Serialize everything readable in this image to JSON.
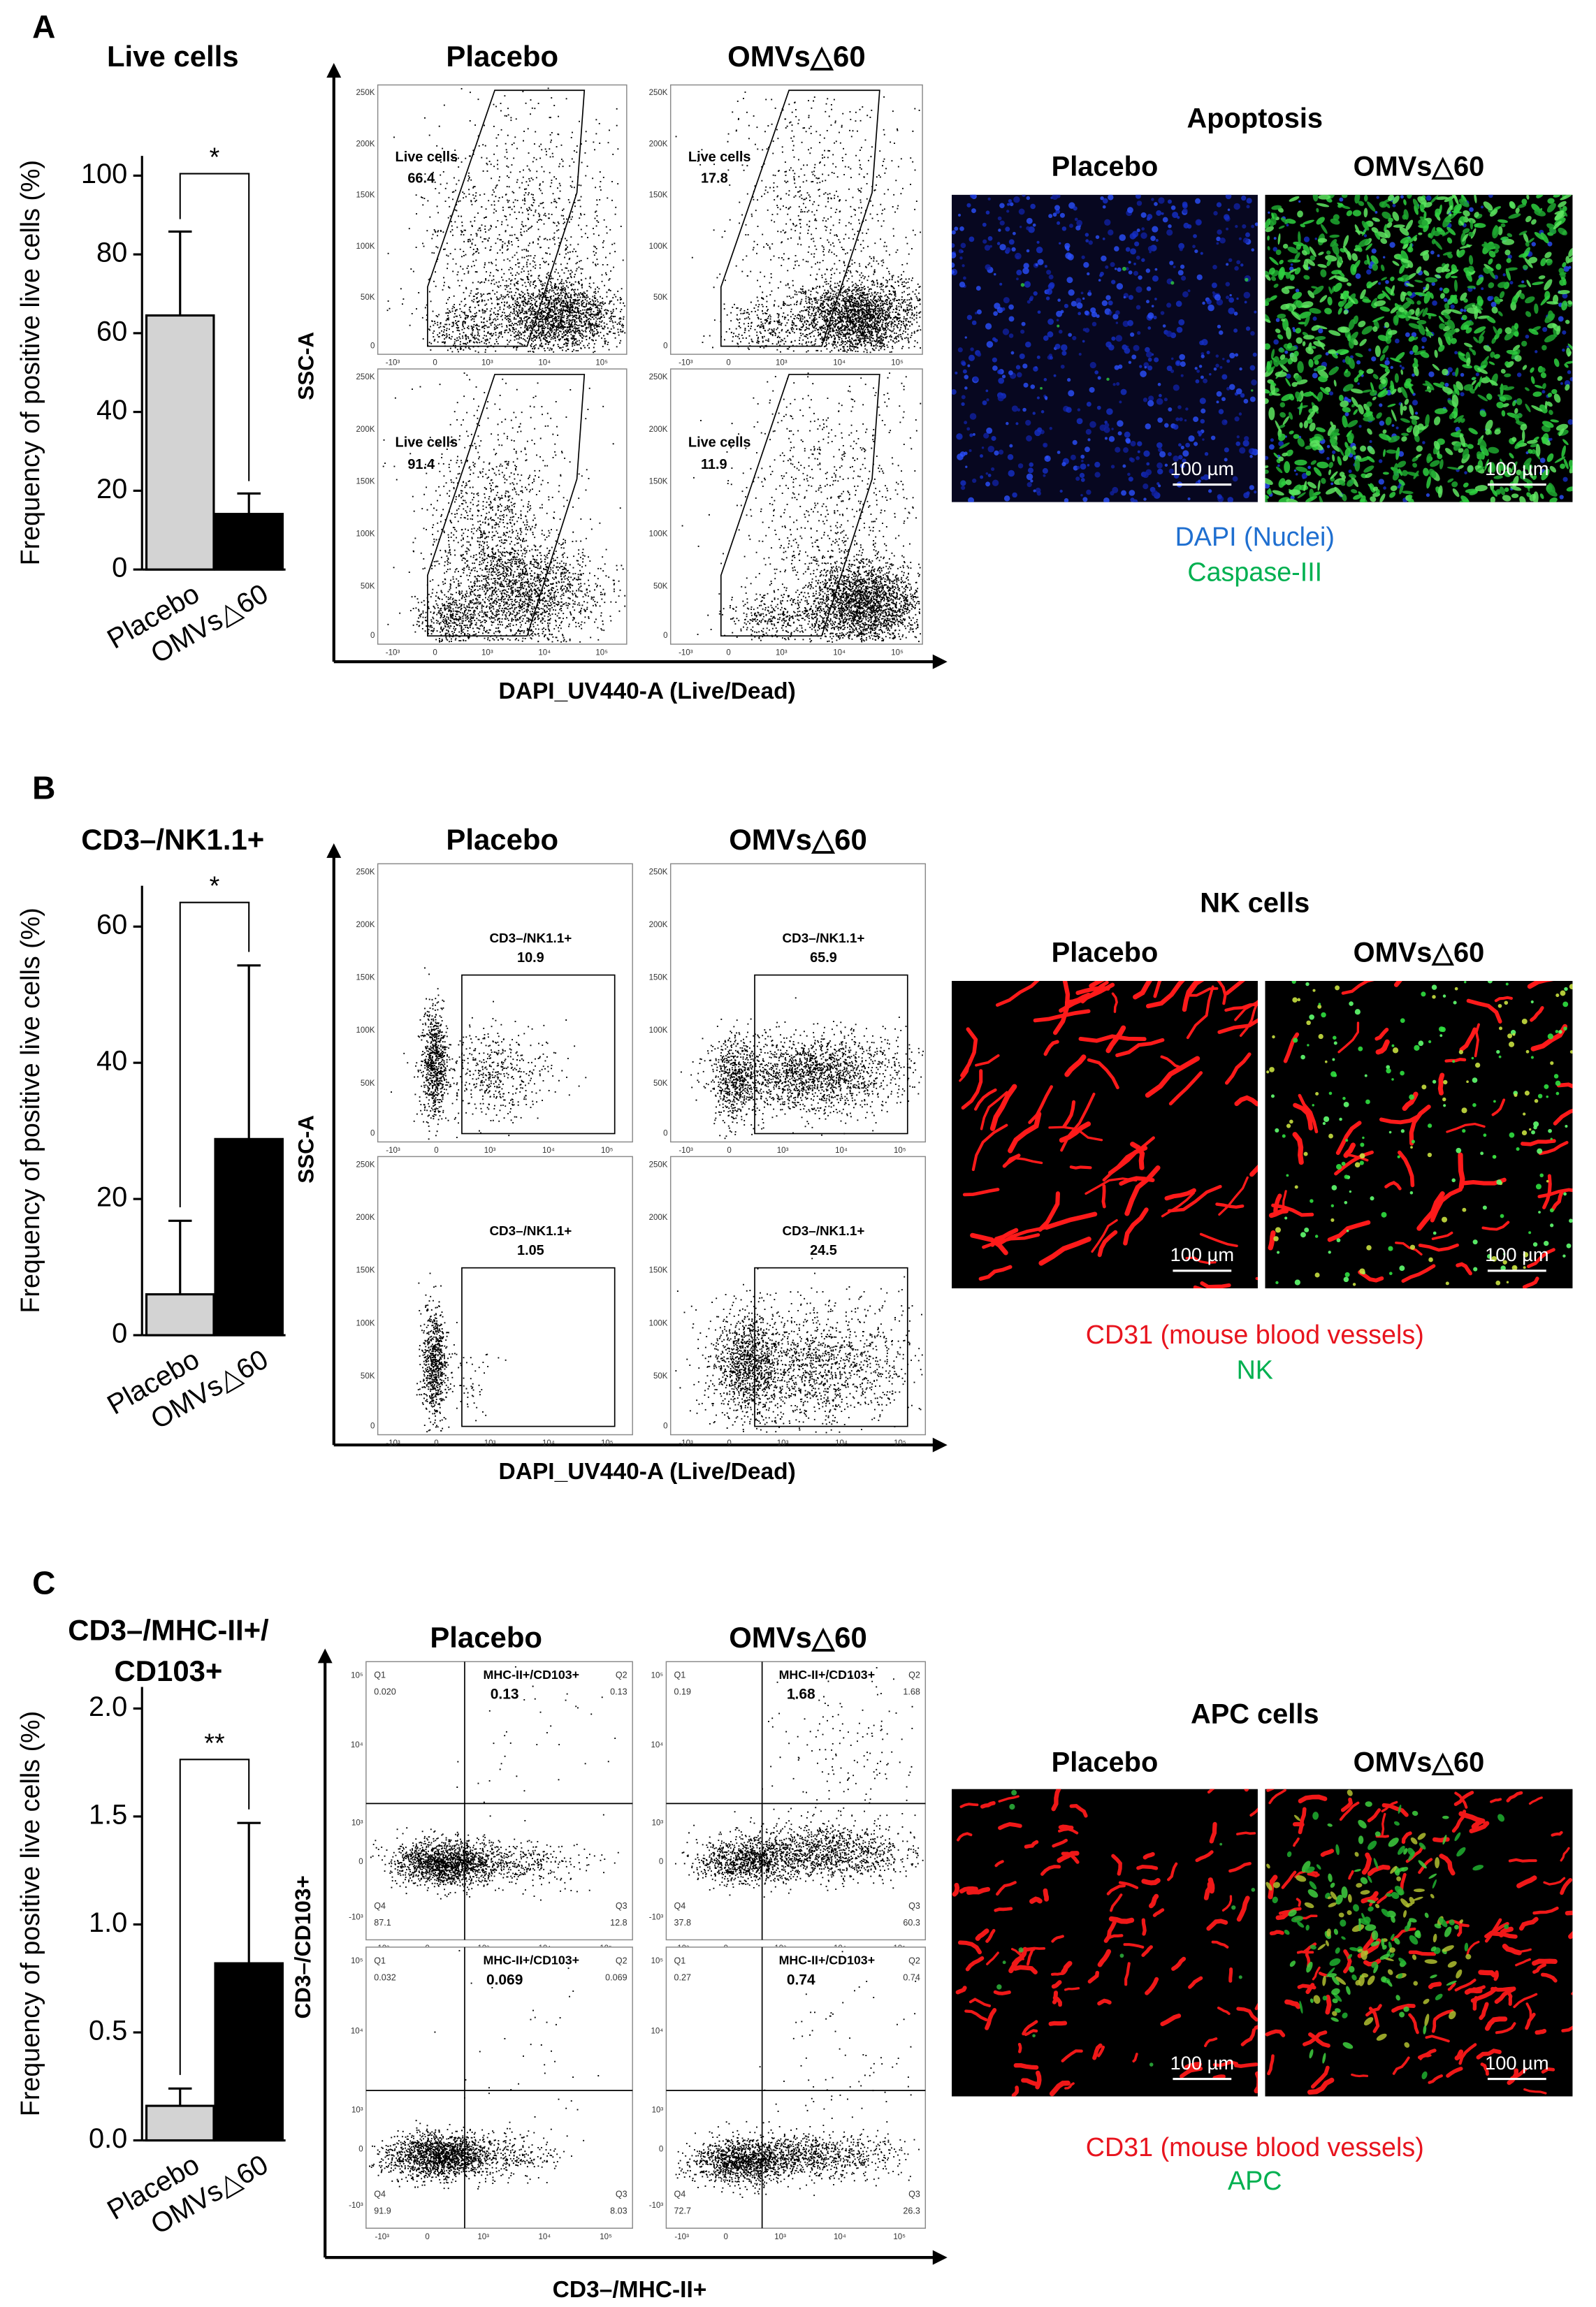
{
  "chart_data": [
    {
      "type": "bar",
      "title": "Live cells",
      "y_label": "Frequency of positive live cells (%)",
      "categories": [
        "Placebo",
        "OMVs△60"
      ],
      "values": [
        64.5,
        14.1
      ],
      "errors": [
        21.3,
        5.2
      ],
      "colors": [
        "#d3d3d3",
        "#000000"
      ],
      "ylim": [
        0,
        105
      ],
      "yticks": [
        0,
        20,
        40,
        60,
        80,
        100
      ],
      "significance": "*"
    },
    {
      "type": "bar",
      "title": "CD3–/NK1.1+",
      "y_label": "Frequency of positive live cells (%)",
      "categories": [
        "Placebo",
        "OMVs△60"
      ],
      "values": [
        6.0,
        28.8
      ],
      "errors": [
        10.8,
        25.5
      ],
      "colors": [
        "#d3d3d3",
        "#000000"
      ],
      "ylim": [
        0,
        66
      ],
      "yticks": [
        0,
        20,
        40,
        60
      ],
      "significance": "*"
    },
    {
      "type": "bar",
      "title": [
        "CD3–/MHC-II+/",
        "CD103+"
      ],
      "y_label": "Frequency of positive live cells (%)",
      "categories": [
        "Placebo",
        "OMVs△60"
      ],
      "values": [
        0.16,
        0.82
      ],
      "errors": [
        0.08,
        0.65
      ],
      "colors": [
        "#d3d3d3",
        "#000000"
      ],
      "ylim": [
        0,
        2.1
      ],
      "yticks": [
        {
          "value": 0,
          "label": "0.0"
        },
        {
          "value": 0.5,
          "label": "0.5"
        },
        {
          "value": 1,
          "label": "1.0"
        },
        {
          "value": 1.5,
          "label": "1.5"
        },
        {
          "value": 2,
          "label": "2.0"
        }
      ],
      "significance": "**"
    }
  ],
  "panels": [
    {
      "letter": "A",
      "flow": {
        "headers": [
          "Placebo",
          "OMVs△60"
        ],
        "y_label": "SSC-A",
        "x_label": "DAPI_UV440-A (Live/Dead)",
        "gate_label": "Live cells",
        "gate_values": [
          "66.4",
          "17.8",
          "91.4",
          "11.9"
        ],
        "yticks": [
          "250K",
          "200K",
          "150K",
          "100K",
          "50K",
          "0"
        ],
        "xticks": [
          "-10³",
          "0",
          "10³",
          "10⁴",
          "10⁵"
        ]
      },
      "images": {
        "title": "Apoptosis",
        "labels": [
          "Placebo",
          "OMVs△60"
        ],
        "scale_bar": "100 µm",
        "legend": [
          {
            "text": "DAPI (Nuclei)",
            "color": "#1f6fd0"
          },
          {
            "text": "Caspase-III",
            "color": "#00b050"
          }
        ]
      }
    },
    {
      "letter": "B",
      "flow": {
        "headers": [
          "Placebo",
          "OMVs△60"
        ],
        "y_label": "SSC-A",
        "x_label": "DAPI_UV440-A (Live/Dead)",
        "gate_label": "CD3–/NK1.1+",
        "gate_values": [
          "10.9",
          "65.9",
          "1.05",
          "24.5"
        ],
        "yticks": [
          "250K",
          "200K",
          "150K",
          "100K",
          "50K",
          "0"
        ],
        "xticks": [
          "-10³",
          "0",
          "10³",
          "10⁴",
          "10⁵"
        ]
      },
      "images": {
        "title": "NK cells",
        "labels": [
          "Placebo",
          "OMVs△60"
        ],
        "scale_bar": "100 µm",
        "legend": [
          {
            "text": "CD31 (mouse blood vessels)",
            "color": "#e8141e"
          },
          {
            "text": "NK",
            "color": "#00b050"
          }
        ]
      }
    },
    {
      "letter": "C",
      "flow": {
        "headers": [
          "Placebo",
          "OMVs△60"
        ],
        "y_label": "CD3–/CD103+",
        "x_label": "CD3–/MHC-II+",
        "gate_label": "MHC-II+/CD103+",
        "gate_values": [
          "0.13",
          "1.68",
          "0.069",
          "0.74"
        ],
        "quadrant_names": [
          "Q1",
          "Q2",
          "Q3",
          "Q4"
        ],
        "quadrants": [
          [
            "0.020",
            "0.13",
            "12.8",
            "87.1"
          ],
          [
            "0.19",
            "1.68",
            "60.3",
            "37.8"
          ],
          [
            "0.032",
            "0.069",
            "8.03",
            "91.9"
          ],
          [
            "0.27",
            "0.74",
            "26.3",
            "72.7"
          ]
        ],
        "yticks": [
          "10⁵",
          "10⁴",
          "10³",
          "0",
          "-10³"
        ],
        "xticks": [
          "-10³",
          "0",
          "10³",
          "10⁴",
          "10⁵"
        ]
      },
      "images": {
        "title": "APC cells",
        "labels": [
          "Placebo",
          "OMVs△60"
        ],
        "scale_bar": "100 µm",
        "legend": [
          {
            "text": "CD31 (mouse blood vessels)",
            "color": "#e8141e"
          },
          {
            "text": "APC",
            "color": "#00b050"
          }
        ]
      }
    }
  ]
}
